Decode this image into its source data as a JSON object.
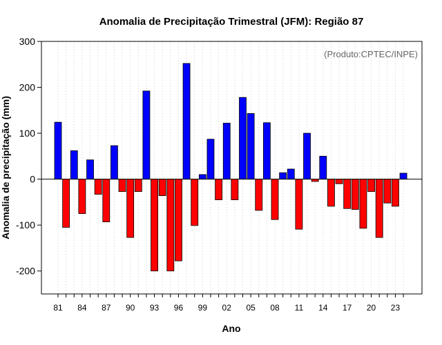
{
  "chart_data": {
    "type": "bar",
    "title": "Anomalia de Precipitação Trimestral (JFM): Região 87",
    "xlabel": "Ano",
    "ylabel": "Anomalia de precipitação (mm)",
    "credit": "(Produto:CPTEC/INPE)",
    "ylim": [
      -250,
      300
    ],
    "yticks": [
      -200,
      -100,
      0,
      100,
      200,
      300
    ],
    "xtick_labels": [
      "81",
      "84",
      "87",
      "90",
      "93",
      "96",
      "99",
      "02",
      "05",
      "08",
      "11",
      "14",
      "17",
      "20",
      "23"
    ],
    "grid": true,
    "colors": {
      "positive": "#0000ff",
      "negative": "#ff0000",
      "outline": "#000000"
    },
    "categories": [
      "1981",
      "1982",
      "1983",
      "1984",
      "1985",
      "1986",
      "1987",
      "1988",
      "1989",
      "1990",
      "1991",
      "1992",
      "1993",
      "1994",
      "1995",
      "1996",
      "1997",
      "1998",
      "1999",
      "2000",
      "2001",
      "2002",
      "2003",
      "2004",
      "2005",
      "2006",
      "2007",
      "2008",
      "2009",
      "2010",
      "2011",
      "2012",
      "2013",
      "2014",
      "2015",
      "2016",
      "2017",
      "2018",
      "2019",
      "2020",
      "2021",
      "2022",
      "2023",
      "2024"
    ],
    "values": [
      124,
      -105,
      62,
      -75,
      42,
      -33,
      -93,
      73,
      -27,
      -127,
      -27,
      192,
      -200,
      -36,
      -200,
      -178,
      252,
      -101,
      10,
      87,
      -45,
      122,
      -45,
      178,
      143,
      -68,
      123,
      -88,
      14,
      22,
      -109,
      100,
      -5,
      50,
      -59,
      -10,
      -64,
      -66,
      -107,
      -27,
      -127,
      -52,
      -59,
      13
    ]
  }
}
